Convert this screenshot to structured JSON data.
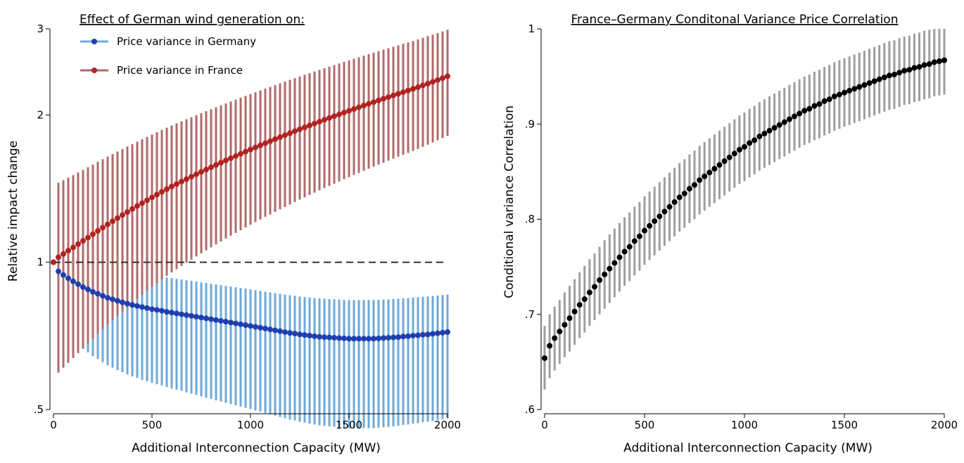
{
  "chart_data": [
    {
      "type": "scatter",
      "title": "",
      "xlabel": "Additional Interconnection Capacity (MW)",
      "ylabel": "Relative impact change",
      "xlim": [
        0,
        2000
      ],
      "ylim": [
        0.5,
        3
      ],
      "x_ticks": [
        0,
        500,
        1000,
        1500,
        2000
      ],
      "x_tick_labels": [
        "0",
        "500",
        "1000",
        "1500",
        "2000"
      ],
      "y_ticks": [
        0.5,
        1,
        2,
        3
      ],
      "y_tick_labels": [
        ".5",
        "1",
        "2",
        "3"
      ],
      "reference_line": 1,
      "legend": {
        "title": "Effect of German wind generation on:",
        "position": "top-left",
        "entries": [
          "Price variance in Germany",
          "Price variance in France"
        ]
      },
      "x_step": 25,
      "series": [
        {
          "name": "Price variance in Germany",
          "color": "#1f3fb0",
          "bar_color": "#6fa8d8",
          "values": [
            1.0,
            0.958,
            0.942,
            0.927,
            0.914,
            0.902,
            0.89,
            0.88,
            0.87,
            0.862,
            0.854,
            0.846,
            0.84,
            0.834,
            0.828,
            0.823,
            0.818,
            0.814,
            0.81,
            0.806,
            0.802,
            0.799,
            0.796,
            0.792,
            0.789,
            0.786,
            0.783,
            0.78,
            0.777,
            0.774,
            0.771,
            0.768,
            0.765,
            0.762,
            0.759,
            0.756,
            0.753,
            0.75,
            0.747,
            0.744,
            0.741,
            0.738,
            0.735,
            0.732,
            0.729,
            0.726,
            0.723,
            0.72,
            0.717,
            0.715,
            0.712,
            0.71,
            0.708,
            0.706,
            0.704,
            0.703,
            0.702,
            0.701,
            0.7,
            0.699,
            0.698,
            0.698,
            0.698,
            0.698,
            0.698,
            0.698,
            0.699,
            0.7,
            0.701,
            0.702,
            0.703,
            0.705,
            0.706,
            0.708,
            0.709,
            0.711,
            0.712,
            0.714,
            0.716,
            0.718,
            0.72
          ],
          "lower": [
            1.0,
            0.742,
            0.724,
            0.707,
            0.692,
            0.678,
            0.665,
            0.654,
            0.643,
            0.634,
            0.625,
            0.616,
            0.609,
            0.602,
            0.596,
            0.59,
            0.584,
            0.58,
            0.575,
            0.571,
            0.567,
            0.563,
            0.56,
            0.556,
            0.552,
            0.549,
            0.546,
            0.542,
            0.539,
            0.536,
            0.532,
            0.529,
            0.526,
            0.522,
            0.519,
            0.516,
            0.513,
            0.51,
            0.507,
            0.504,
            0.501,
            0.498,
            0.495,
            0.492,
            0.489,
            0.486,
            0.483,
            0.48,
            0.477,
            0.475,
            0.472,
            0.47,
            0.468,
            0.466,
            0.464,
            0.463,
            0.462,
            0.461,
            0.46,
            0.459,
            0.458,
            0.458,
            0.458,
            0.458,
            0.458,
            0.458,
            0.459,
            0.46,
            0.461,
            0.462,
            0.463,
            0.465,
            0.466,
            0.468,
            0.469,
            0.471,
            0.472,
            0.474,
            0.476,
            0.478,
            0.48
          ],
          "upper": [
            1.0,
            1.098,
            1.081,
            1.066,
            1.052,
            1.04,
            1.028,
            1.018,
            1.008,
            1.0,
            0.993,
            0.985,
            0.979,
            0.973,
            0.967,
            0.962,
            0.957,
            0.953,
            0.949,
            0.945,
            0.941,
            0.938,
            0.935,
            0.931,
            0.928,
            0.925,
            0.922,
            0.919,
            0.916,
            0.913,
            0.91,
            0.907,
            0.904,
            0.901,
            0.898,
            0.895,
            0.892,
            0.889,
            0.886,
            0.883,
            0.88,
            0.877,
            0.874,
            0.871,
            0.868,
            0.865,
            0.862,
            0.859,
            0.856,
            0.854,
            0.851,
            0.849,
            0.847,
            0.845,
            0.843,
            0.842,
            0.841,
            0.84,
            0.839,
            0.838,
            0.837,
            0.837,
            0.837,
            0.837,
            0.837,
            0.837,
            0.838,
            0.839,
            0.84,
            0.841,
            0.842,
            0.844,
            0.845,
            0.847,
            0.848,
            0.85,
            0.851,
            0.853,
            0.855,
            0.857,
            0.859
          ]
        },
        {
          "name": "Price variance in France",
          "color": "#b22222",
          "bar_color": "#b06a6a",
          "values": [
            1.0,
            1.024,
            1.04,
            1.056,
            1.072,
            1.089,
            1.106,
            1.123,
            1.141,
            1.159,
            1.177,
            1.195,
            1.213,
            1.231,
            1.249,
            1.267,
            1.285,
            1.303,
            1.321,
            1.339,
            1.357,
            1.375,
            1.393,
            1.411,
            1.428,
            1.445,
            1.462,
            1.479,
            1.496,
            1.513,
            1.53,
            1.547,
            1.564,
            1.581,
            1.598,
            1.615,
            1.632,
            1.649,
            1.666,
            1.683,
            1.7,
            1.717,
            1.734,
            1.751,
            1.768,
            1.785,
            1.802,
            1.819,
            1.836,
            1.853,
            1.87,
            1.887,
            1.904,
            1.921,
            1.938,
            1.955,
            1.972,
            1.989,
            2.006,
            2.023,
            2.04,
            2.057,
            2.074,
            2.091,
            2.108,
            2.125,
            2.142,
            2.159,
            2.176,
            2.193,
            2.21,
            2.227,
            2.244,
            2.262,
            2.28,
            2.299,
            2.318,
            2.338,
            2.358,
            2.379,
            2.4
          ],
          "lower": [
            1.0,
            0.595,
            0.609,
            0.623,
            0.637,
            0.652,
            0.667,
            0.682,
            0.698,
            0.714,
            0.73,
            0.746,
            0.762,
            0.778,
            0.794,
            0.81,
            0.826,
            0.842,
            0.858,
            0.874,
            0.89,
            0.906,
            0.922,
            0.938,
            0.953,
            0.968,
            0.983,
            0.998,
            1.013,
            1.028,
            1.043,
            1.058,
            1.073,
            1.088,
            1.103,
            1.118,
            1.133,
            1.148,
            1.163,
            1.178,
            1.193,
            1.208,
            1.223,
            1.238,
            1.253,
            1.268,
            1.283,
            1.298,
            1.313,
            1.328,
            1.343,
            1.358,
            1.373,
            1.388,
            1.403,
            1.418,
            1.433,
            1.448,
            1.463,
            1.478,
            1.493,
            1.508,
            1.523,
            1.538,
            1.553,
            1.568,
            1.583,
            1.598,
            1.613,
            1.628,
            1.643,
            1.658,
            1.673,
            1.689,
            1.705,
            1.722,
            1.739,
            1.757,
            1.775,
            1.794,
            1.813
          ],
          "upper": [
            1.0,
            1.454,
            1.471,
            1.489,
            1.507,
            1.526,
            1.545,
            1.564,
            1.584,
            1.604,
            1.624,
            1.644,
            1.664,
            1.684,
            1.704,
            1.724,
            1.744,
            1.764,
            1.784,
            1.804,
            1.824,
            1.844,
            1.864,
            1.884,
            1.903,
            1.922,
            1.941,
            1.96,
            1.979,
            1.998,
            2.017,
            2.036,
            2.055,
            2.074,
            2.093,
            2.112,
            2.131,
            2.15,
            2.169,
            2.188,
            2.207,
            2.226,
            2.245,
            2.264,
            2.283,
            2.302,
            2.321,
            2.34,
            2.359,
            2.378,
            2.397,
            2.416,
            2.435,
            2.454,
            2.473,
            2.492,
            2.511,
            2.53,
            2.549,
            2.568,
            2.587,
            2.606,
            2.625,
            2.644,
            2.663,
            2.682,
            2.701,
            2.72,
            2.739,
            2.758,
            2.777,
            2.796,
            2.815,
            2.835,
            2.855,
            2.876,
            2.897,
            2.919,
            2.941,
            2.964,
            2.987
          ]
        }
      ]
    },
    {
      "type": "scatter",
      "title": "France–Germany Conditonal Variance Price Correlation",
      "xlabel": "Additional Interconnection Capacity (MW)",
      "ylabel": "Conditional variance Correlation",
      "xlim": [
        0,
        2000
      ],
      "ylim": [
        0.6,
        1
      ],
      "x_ticks": [
        0,
        500,
        1000,
        1500,
        2000
      ],
      "x_tick_labels": [
        "0",
        "500",
        "1000",
        "1500",
        "2000"
      ],
      "y_ticks": [
        0.6,
        0.7,
        0.8,
        0.9,
        1
      ],
      "y_tick_labels": [
        ".6",
        ".7",
        ".8",
        ".9",
        "1"
      ],
      "x_step": 25,
      "series": [
        {
          "name": "",
          "color": "#000000",
          "bar_color": "#9e9e9e",
          "values": [
            0.654,
            0.667,
            0.675,
            0.682,
            0.689,
            0.696,
            0.703,
            0.71,
            0.716,
            0.723,
            0.729,
            0.736,
            0.742,
            0.748,
            0.754,
            0.76,
            0.766,
            0.771,
            0.777,
            0.782,
            0.788,
            0.793,
            0.798,
            0.803,
            0.808,
            0.813,
            0.818,
            0.823,
            0.827,
            0.832,
            0.836,
            0.841,
            0.845,
            0.849,
            0.853,
            0.857,
            0.861,
            0.865,
            0.869,
            0.873,
            0.876,
            0.88,
            0.883,
            0.887,
            0.89,
            0.893,
            0.896,
            0.899,
            0.902,
            0.905,
            0.908,
            0.911,
            0.914,
            0.916,
            0.919,
            0.921,
            0.924,
            0.926,
            0.929,
            0.931,
            0.933,
            0.935,
            0.937,
            0.939,
            0.941,
            0.943,
            0.945,
            0.947,
            0.949,
            0.951,
            0.952,
            0.954,
            0.956,
            0.957,
            0.959,
            0.96,
            0.962,
            0.963,
            0.965,
            0.966,
            0.967
          ],
          "lower": [
            0.621,
            0.633,
            0.641,
            0.648,
            0.655,
            0.661,
            0.668,
            0.675,
            0.681,
            0.688,
            0.694,
            0.7,
            0.706,
            0.712,
            0.718,
            0.724,
            0.73,
            0.735,
            0.741,
            0.746,
            0.752,
            0.757,
            0.762,
            0.767,
            0.772,
            0.777,
            0.782,
            0.787,
            0.791,
            0.796,
            0.8,
            0.805,
            0.809,
            0.813,
            0.817,
            0.821,
            0.825,
            0.829,
            0.833,
            0.837,
            0.84,
            0.844,
            0.847,
            0.851,
            0.854,
            0.857,
            0.86,
            0.863,
            0.866,
            0.869,
            0.872,
            0.875,
            0.878,
            0.88,
            0.883,
            0.885,
            0.888,
            0.89,
            0.893,
            0.895,
            0.897,
            0.899,
            0.901,
            0.903,
            0.905,
            0.907,
            0.909,
            0.911,
            0.913,
            0.915,
            0.916,
            0.918,
            0.92,
            0.921,
            0.923,
            0.924,
            0.926,
            0.927,
            0.929,
            0.93,
            0.931
          ],
          "upper": [
            0.688,
            0.7,
            0.708,
            0.715,
            0.723,
            0.73,
            0.737,
            0.744,
            0.751,
            0.758,
            0.764,
            0.771,
            0.778,
            0.784,
            0.79,
            0.796,
            0.802,
            0.807,
            0.813,
            0.818,
            0.824,
            0.829,
            0.834,
            0.839,
            0.844,
            0.849,
            0.854,
            0.859,
            0.863,
            0.868,
            0.872,
            0.877,
            0.881,
            0.885,
            0.889,
            0.893,
            0.897,
            0.901,
            0.905,
            0.909,
            0.912,
            0.916,
            0.919,
            0.923,
            0.926,
            0.929,
            0.932,
            0.935,
            0.938,
            0.941,
            0.944,
            0.947,
            0.95,
            0.952,
            0.955,
            0.957,
            0.96,
            0.962,
            0.965,
            0.967,
            0.969,
            0.971,
            0.973,
            0.975,
            0.977,
            0.979,
            0.981,
            0.983,
            0.985,
            0.987,
            0.988,
            0.99,
            0.992,
            0.993,
            0.995,
            0.996,
            0.998,
            0.999,
            1.0,
            1.0,
            1.0
          ]
        }
      ]
    }
  ]
}
